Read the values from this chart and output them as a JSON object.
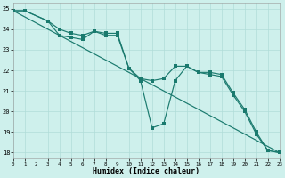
{
  "xlabel": "Humidex (Indice chaleur)",
  "xlim": [
    0,
    23
  ],
  "ylim": [
    17.7,
    25.3
  ],
  "xticks": [
    0,
    1,
    2,
    3,
    4,
    5,
    6,
    7,
    8,
    9,
    10,
    11,
    12,
    13,
    14,
    15,
    16,
    17,
    18,
    19,
    20,
    21,
    22,
    23
  ],
  "yticks": [
    18,
    19,
    20,
    21,
    22,
    23,
    24,
    25
  ],
  "bg_color": "#cef0ec",
  "grid_color": "#b0ddd8",
  "line_color": "#1a7a6e",
  "line1_x": [
    0,
    1,
    3,
    4,
    5,
    6,
    7,
    8,
    9,
    10,
    11,
    12,
    13,
    14,
    15,
    16,
    17,
    18,
    19,
    20,
    21,
    22,
    23
  ],
  "line1_y": [
    24.9,
    24.9,
    24.4,
    23.7,
    23.6,
    23.5,
    23.9,
    23.7,
    23.7,
    22.1,
    21.5,
    19.2,
    19.4,
    21.5,
    22.2,
    21.9,
    21.8,
    21.7,
    20.8,
    20.0,
    18.9,
    18.1,
    18.0
  ],
  "line2_x": [
    0,
    1,
    3,
    4,
    5,
    6,
    7,
    8,
    9,
    10,
    11,
    12,
    13,
    14,
    15,
    16,
    17,
    18,
    19,
    20,
    21,
    22,
    23
  ],
  "line2_y": [
    24.9,
    24.9,
    24.4,
    24.0,
    23.8,
    23.7,
    23.9,
    23.8,
    23.8,
    22.1,
    21.6,
    21.5,
    21.6,
    22.2,
    22.2,
    21.9,
    21.9,
    21.8,
    20.9,
    20.1,
    19.0,
    18.1,
    18.0
  ],
  "line3_x": [
    0,
    23
  ],
  "line3_y": [
    24.9,
    18.0
  ]
}
